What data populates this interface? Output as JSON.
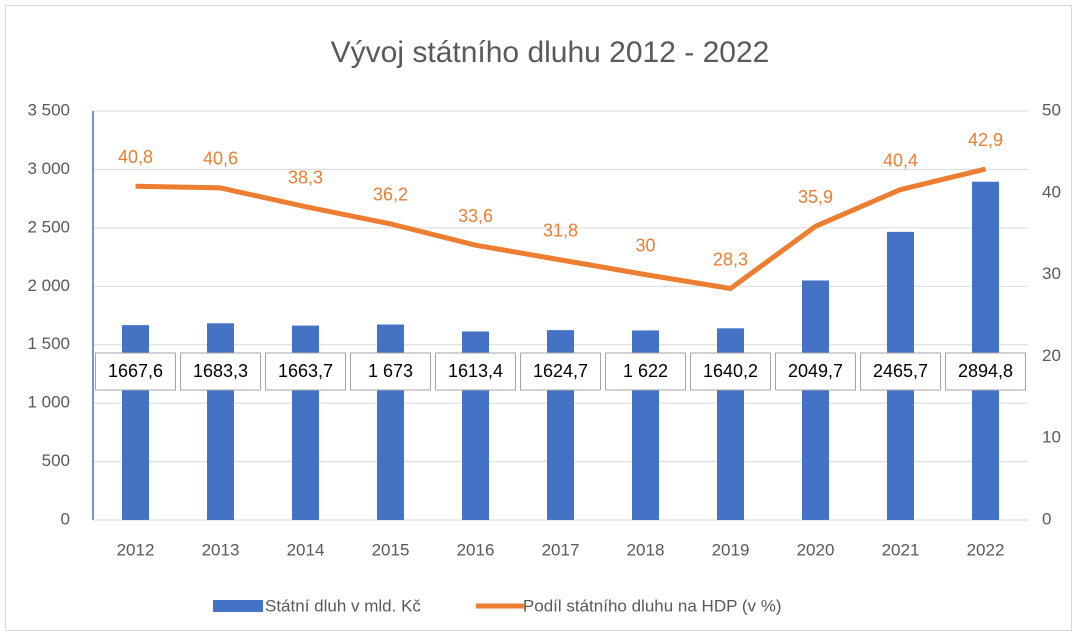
{
  "chart_data": {
    "type": "bar_line",
    "title": "Vývoj státního dluhu 2012 - 2022",
    "categories": [
      "2012",
      "2013",
      "2014",
      "2015",
      "2016",
      "2017",
      "2018",
      "2019",
      "2020",
      "2021",
      "2022"
    ],
    "series": [
      {
        "name": "Státní dluh v mld. Kč",
        "type": "bar",
        "color": "#4472c4",
        "values": [
          1667.6,
          1683.3,
          1663.7,
          1673,
          1613.4,
          1624.7,
          1622,
          1640.2,
          2049.7,
          2465.7,
          2894.8
        ],
        "value_labels": [
          "1667,6",
          "1683,3",
          "1663,7",
          "1 673",
          "1613,4",
          "1624,7",
          "1 622",
          "1640,2",
          "2049,7",
          "2465,7",
          "2894,8"
        ]
      },
      {
        "name": "Podíl státního dluhu na HDP (v %)",
        "type": "line",
        "axis": "y2",
        "color": "#ed7d31",
        "values": [
          40.8,
          40.6,
          38.3,
          36.2,
          33.6,
          31.8,
          30,
          28.3,
          35.9,
          40.4,
          42.9
        ],
        "value_labels": [
          "40,8",
          "40,6",
          "38,3",
          "36,2",
          "33,6",
          "31,8",
          "30",
          "28,3",
          "35,9",
          "40,4",
          "42,9"
        ]
      }
    ],
    "ylim": [
      0,
      3500
    ],
    "yticks": [
      0,
      500,
      {
        "value": 1000,
        "label": "1 000"
      },
      {
        "value": 1500,
        "label": "1 500"
      },
      {
        "value": 2000,
        "label": "2 000"
      },
      {
        "value": 2500,
        "label": "2 500"
      },
      {
        "value": 3000,
        "label": "3 000"
      },
      {
        "value": 3500,
        "label": "3 500"
      }
    ],
    "y2lim": [
      0,
      50
    ],
    "y2ticks": [
      0,
      10,
      20,
      30,
      40,
      50
    ],
    "grid": true,
    "legend": "bottom"
  }
}
